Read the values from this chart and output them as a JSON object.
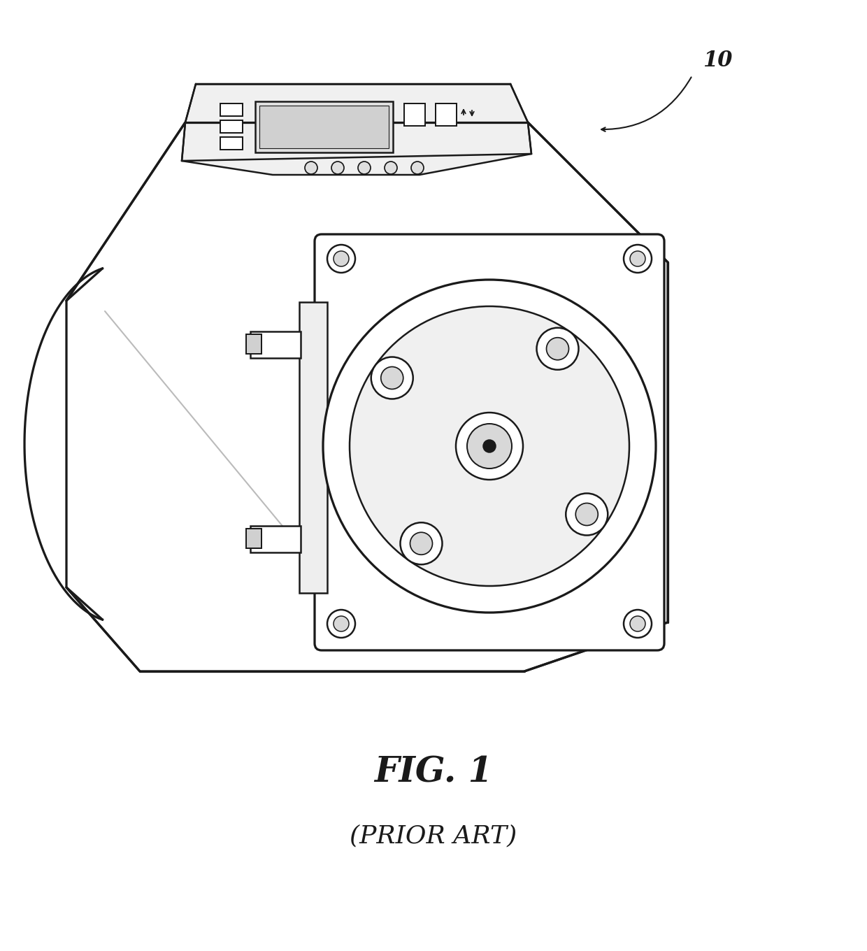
{
  "bg_color": "#ffffff",
  "line_color": "#1a1a1a",
  "line_width": 1.8,
  "title": "FIG. 1",
  "subtitle": "(PRIOR ART)",
  "label_10": "10",
  "title_fontsize": 36,
  "subtitle_fontsize": 26,
  "label_fontsize": 22
}
